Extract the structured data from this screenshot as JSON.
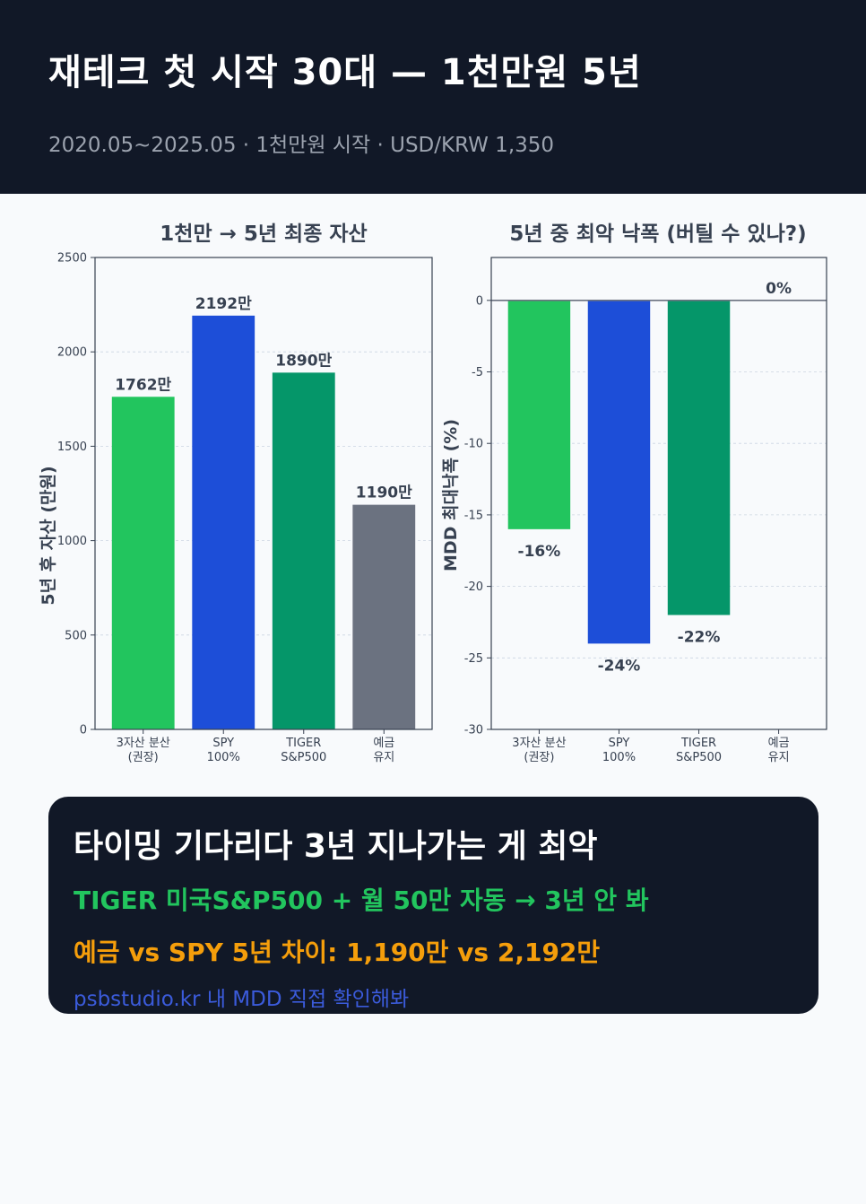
{
  "header": {
    "title": "재테크 첫 시작 30대 — 1천만원 5년",
    "subtitle": "2020.05~2025.05 · 1천만원 시작 · USD/KRW 1,350"
  },
  "colors": {
    "green": "#22c55e",
    "blue": "#1d4ed8",
    "teal": "#059669",
    "gray": "#6b7280",
    "orange": "#f59e0b",
    "dark_bg": "#111827"
  },
  "chart_data": [
    {
      "type": "bar",
      "title": "1천만 → 5년 최종 자산",
      "xlabel": "",
      "ylabel": "5년 후 자산 (만원)",
      "categories": [
        [
          "3자산 분산",
          "(권장)"
        ],
        [
          "SPY",
          "100%"
        ],
        [
          "TIGER",
          "S&P500"
        ],
        [
          "예금",
          "유지"
        ]
      ],
      "values": [
        1762,
        2192,
        1890,
        1190
      ],
      "value_labels": [
        "1762만",
        "2192만",
        "1890만",
        "1190만"
      ],
      "colors": [
        "#22c55e",
        "#1d4ed8",
        "#059669",
        "#6b7280"
      ],
      "ylim": [
        0,
        2500
      ],
      "yticks": [
        0,
        500,
        1000,
        1500,
        2000,
        2500
      ],
      "grid": true
    },
    {
      "type": "bar",
      "title": "5년 중 최악 낙폭 (버틸 수 있나?)",
      "xlabel": "",
      "ylabel": "MDD 최대낙폭 (%)",
      "categories": [
        [
          "3자산 분산",
          "(권장)"
        ],
        [
          "SPY",
          "100%"
        ],
        [
          "TIGER",
          "S&P500"
        ],
        [
          "예금",
          "유지"
        ]
      ],
      "values": [
        -16,
        -24,
        -22,
        0
      ],
      "value_labels": [
        "-16%",
        "-24%",
        "-22%",
        "0%"
      ],
      "colors": [
        "#22c55e",
        "#1d4ed8",
        "#059669",
        "#6b7280"
      ],
      "ylim": [
        -30,
        3
      ],
      "yticks": [
        0,
        -5,
        -10,
        -15,
        -20,
        -25,
        -30
      ],
      "grid": true
    }
  ],
  "callout": {
    "title": "타이밍 기다리다 3년 지나가는 게 최악",
    "line1": "TIGER 미국S&P500 + 월 50만 자동 → 3년 안 봐",
    "line2": "예금 vs SPY 5년 차이: 1,190만 vs 2,192만",
    "link": "psbstudio.kr 내 MDD 직접 확인해봐"
  }
}
